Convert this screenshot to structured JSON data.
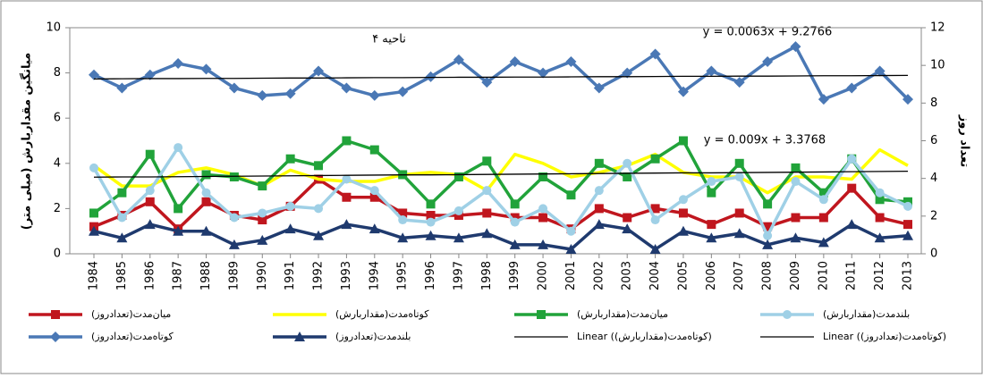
{
  "chart_data": {
    "type": "line",
    "annotations": [
      "ناحیه ۴",
      "y = 0.0063x + 9.2766",
      "y = 0.009x + 3.3768"
    ],
    "y_label": "میانگین مقداربارش (میلی متر)",
    "y2_label": "تعداد روز",
    "categories": [
      "1984",
      "1985",
      "1986",
      "1987",
      "1988",
      "1989",
      "1990",
      "1991",
      "1992",
      "1993",
      "1994",
      "1995",
      "1996",
      "1997",
      "1998",
      "1999",
      "2000",
      "2001",
      "2002",
      "2003",
      "2004",
      "2005",
      "2006",
      "2007",
      "2008",
      "2009",
      "2010",
      "2011",
      "2012",
      "2013"
    ],
    "ylim": [
      0,
      10
    ],
    "yticks": [
      0,
      2,
      4,
      6,
      8,
      10
    ],
    "y2lim": [
      0,
      12
    ],
    "y2ticks": [
      0,
      2,
      4,
      6,
      8,
      10,
      12
    ],
    "series": [
      {
        "name": "میان‌مدت(تعدادروز)",
        "color": "#c0161e",
        "marker": "square",
        "values": [
          1.2,
          1.7,
          2.3,
          1.1,
          2.3,
          1.7,
          1.5,
          2.1,
          3.3,
          2.5,
          2.5,
          1.8,
          1.7,
          1.7,
          1.8,
          1.6,
          1.6,
          1.1,
          2.0,
          1.6,
          2.0,
          1.8,
          1.3,
          1.8,
          1.2,
          1.6,
          1.6,
          2.9,
          1.6,
          1.3
        ]
      },
      {
        "name": "کوتاه‌مدت(مقداربارش)",
        "color": "#ffff00",
        "marker": "none",
        "values": [
          3.9,
          3.0,
          3.0,
          3.6,
          3.8,
          3.5,
          3.0,
          3.7,
          3.3,
          3.2,
          3.2,
          3.5,
          3.6,
          3.5,
          2.8,
          4.4,
          4.0,
          3.4,
          3.6,
          3.9,
          4.4,
          3.6,
          3.4,
          3.4,
          2.7,
          3.4,
          3.4,
          3.3,
          4.6,
          3.9
        ]
      },
      {
        "name": "میان‌مدت(مقداربارش)",
        "color": "#21a33a",
        "marker": "square",
        "values": [
          1.8,
          2.7,
          4.4,
          2.0,
          3.5,
          3.4,
          3.0,
          4.2,
          3.9,
          5.0,
          4.6,
          3.5,
          2.2,
          3.4,
          4.1,
          2.2,
          3.4,
          2.6,
          4.0,
          3.4,
          4.2,
          5.0,
          2.7,
          4.0,
          2.2,
          3.8,
          2.7,
          4.2,
          2.4,
          2.3
        ]
      },
      {
        "name": "بلندمدت(مقداربارش)",
        "color": "#9fd0e6",
        "marker": "circle",
        "values": [
          3.8,
          1.6,
          2.8,
          4.7,
          2.7,
          1.6,
          1.8,
          2.1,
          2.0,
          3.3,
          2.8,
          1.5,
          1.4,
          1.9,
          2.8,
          1.4,
          2.0,
          1.0,
          2.8,
          4.0,
          1.5,
          2.4,
          3.2,
          3.4,
          0.8,
          3.2,
          2.4,
          4.2,
          2.7,
          2.1
        ]
      },
      {
        "name": "کوتاه‌مدت(تعدادروز)",
        "color": "#4a78b5",
        "marker": "diamond",
        "axis": "y2",
        "values": [
          9.5,
          8.8,
          9.5,
          10.1,
          9.8,
          8.8,
          8.4,
          8.5,
          9.7,
          8.8,
          8.4,
          8.6,
          9.4,
          10.3,
          9.1,
          10.2,
          9.6,
          10.2,
          8.8,
          9.6,
          10.6,
          8.6,
          9.7,
          9.1,
          10.2,
          11.0,
          8.2,
          8.8,
          9.7,
          8.2
        ]
      },
      {
        "name": "بلندمدت(تعدادروز)",
        "color": "#1f3a6e",
        "marker": "triangle",
        "values": [
          1.0,
          0.7,
          1.3,
          1.0,
          1.0,
          0.4,
          0.6,
          1.1,
          0.8,
          1.3,
          1.1,
          0.7,
          0.8,
          0.7,
          0.9,
          0.4,
          0.4,
          0.2,
          1.3,
          1.1,
          0.2,
          1.0,
          0.7,
          0.9,
          0.4,
          0.7,
          0.5,
          1.3,
          0.7,
          0.8
        ]
      },
      {
        "name": "Linear (کوتاه‌مدت(مقداربارش))",
        "color": "#000000",
        "marker": "none",
        "thin": true,
        "values": [
          3.39,
          3.4,
          3.4,
          3.41,
          3.42,
          3.43,
          3.44,
          3.45,
          3.46,
          3.47,
          3.48,
          3.49,
          3.49,
          3.5,
          3.51,
          3.52,
          3.53,
          3.54,
          3.55,
          3.56,
          3.57,
          3.58,
          3.58,
          3.59,
          3.6,
          3.61,
          3.62,
          3.63,
          3.64,
          3.65
        ]
      },
      {
        "name": "Linear (کوتاه‌مدت(تعدادروز))",
        "color": "#000000",
        "marker": "none",
        "thin": true,
        "axis": "y2",
        "values": [
          9.28,
          9.29,
          9.3,
          9.3,
          9.31,
          9.31,
          9.32,
          9.33,
          9.33,
          9.34,
          9.35,
          9.35,
          9.36,
          9.37,
          9.37,
          9.38,
          9.38,
          9.39,
          9.4,
          9.4,
          9.41,
          9.42,
          9.42,
          9.43,
          9.43,
          9.44,
          9.45,
          9.45,
          9.46,
          9.47
        ]
      }
    ]
  }
}
